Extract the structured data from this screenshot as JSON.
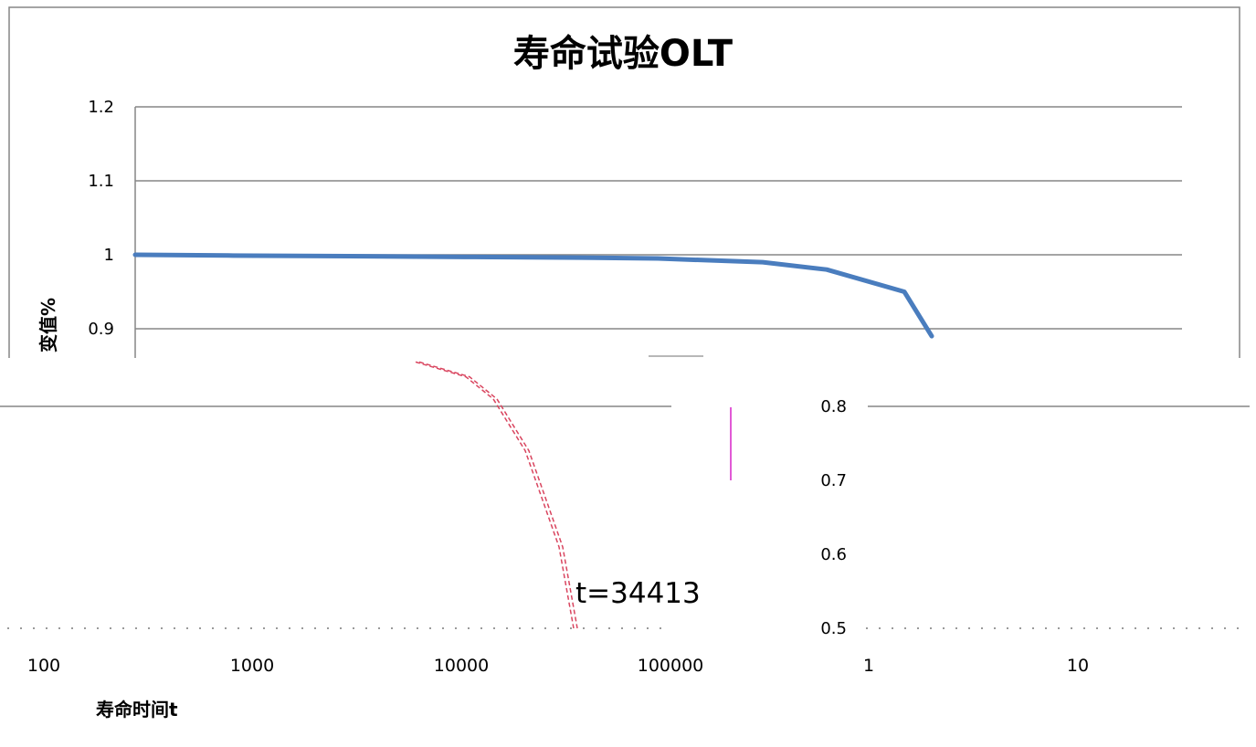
{
  "chart_data": {
    "type": "line",
    "title": "寿命试验OLT",
    "ylabel": "变值%",
    "xlabel": "寿命时间t",
    "y_scale": "linear",
    "x_scale": "log",
    "upper_y_ticks": [
      "1.2",
      "1.1",
      "1",
      "0.9"
    ],
    "lower_y_ticks": [
      "0.8",
      "0.7",
      "0.6",
      "0.5"
    ],
    "x_ticks": [
      "100",
      "1000",
      "10000",
      "100000",
      "1",
      "10"
    ],
    "series_upper": {
      "x": [
        1,
        2,
        5,
        10,
        30,
        100,
        300,
        1000,
        2000,
        3000
      ],
      "y": [
        1.0,
        0.999,
        0.998,
        0.997,
        0.996,
        0.995,
        0.99,
        0.98,
        0.95,
        0.89
      ]
    },
    "series_lower": {
      "x": [
        5000,
        9000,
        13000,
        20000,
        30000,
        34413
      ],
      "y": [
        0.86,
        0.84,
        0.81,
        0.74,
        0.61,
        0.5
      ]
    },
    "annotation": "t=34413",
    "colors": {
      "series_upper": "#4a7dbe",
      "series_lower": "#d9455f",
      "marker": "#e15ad6",
      "gridline": "#868686"
    }
  }
}
